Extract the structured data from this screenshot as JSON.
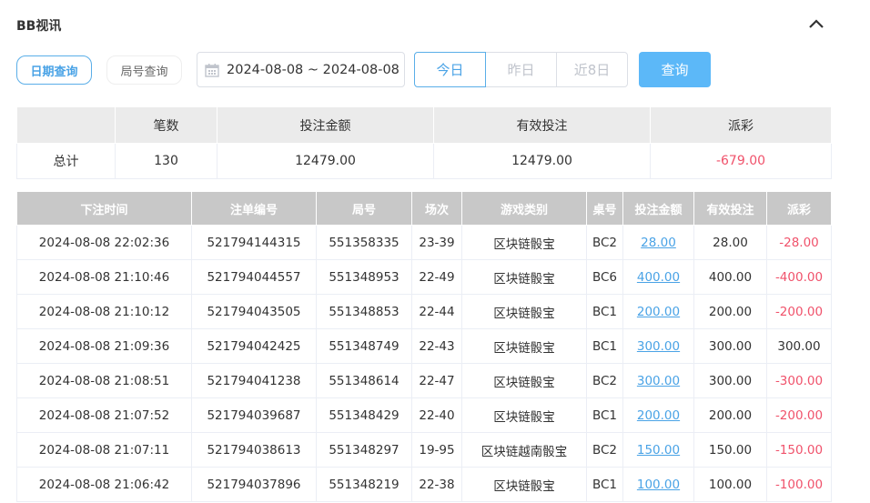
{
  "title": "BB视讯",
  "icons": {
    "collapse": "chevron-up-icon",
    "calendar": "calendar-icon"
  },
  "colors": {
    "accent": "#4aa3e6",
    "negative": "#f0526b",
    "header_bg": "#c8c8c8"
  },
  "filters": {
    "date_query": "日期查询",
    "round_query": "局号查询",
    "date_range": "2024-08-08 ~ 2024-08-08",
    "today": "今日",
    "yesterday": "昨日",
    "last8": "近8日",
    "query": "查询"
  },
  "summary": {
    "headers": [
      "",
      "笔数",
      "投注金额",
      "有效投注",
      "派彩"
    ],
    "row": [
      "总计",
      "130",
      "12479.00",
      "12479.00",
      "-679.00"
    ]
  },
  "table": {
    "headers": [
      "下注时间",
      "注单编号",
      "局号",
      "场次",
      "游戏类别",
      "桌号",
      "投注金额",
      "有效投注",
      "派彩"
    ],
    "rows": [
      [
        "2024-08-08 22:02:36",
        "521794144315",
        "551358335",
        "23-39",
        "区块链骰宝",
        "BC2",
        "28.00",
        "28.00",
        "-28.00"
      ],
      [
        "2024-08-08 21:10:46",
        "521794044557",
        "551348953",
        "22-49",
        "区块链骰宝",
        "BC6",
        "400.00",
        "400.00",
        "-400.00"
      ],
      [
        "2024-08-08 21:10:12",
        "521794043505",
        "551348853",
        "22-44",
        "区块链骰宝",
        "BC1",
        "200.00",
        "200.00",
        "-200.00"
      ],
      [
        "2024-08-08 21:09:36",
        "521794042425",
        "551348749",
        "22-43",
        "区块链骰宝",
        "BC1",
        "300.00",
        "300.00",
        "300.00"
      ],
      [
        "2024-08-08 21:08:51",
        "521794041238",
        "551348614",
        "22-47",
        "区块链骰宝",
        "BC2",
        "300.00",
        "300.00",
        "-300.00"
      ],
      [
        "2024-08-08 21:07:52",
        "521794039687",
        "551348429",
        "22-40",
        "区块链骰宝",
        "BC1",
        "200.00",
        "200.00",
        "-200.00"
      ],
      [
        "2024-08-08 21:07:11",
        "521794038613",
        "551348297",
        "19-95",
        "区块链越南骰宝",
        "BC2",
        "150.00",
        "150.00",
        "-150.00"
      ],
      [
        "2024-08-08 21:06:42",
        "521794037896",
        "551348219",
        "22-38",
        "区块链骰宝",
        "BC1",
        "100.00",
        "100.00",
        "-100.00"
      ]
    ]
  }
}
